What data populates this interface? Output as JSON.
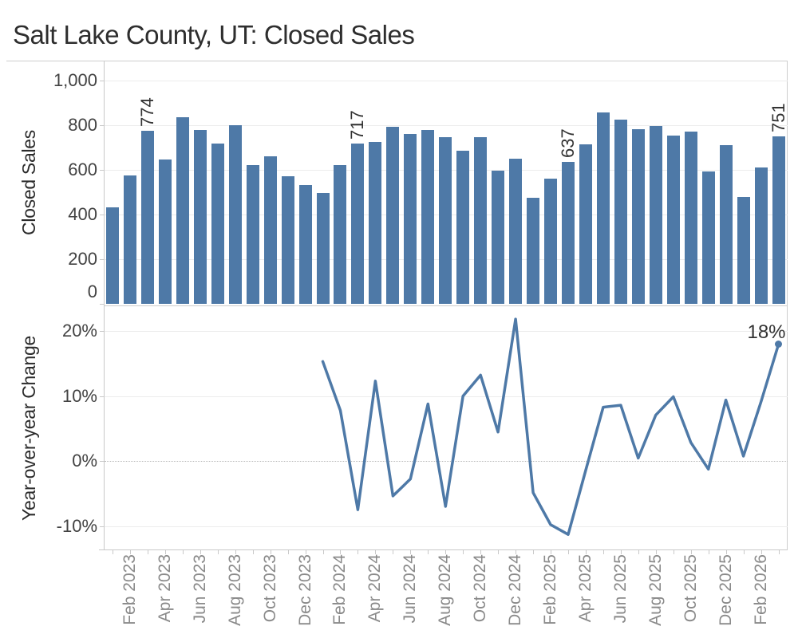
{
  "title": "Salt Lake County, UT: Closed Sales",
  "colors": {
    "bar": "#4e79a7",
    "line": "#4e79a7",
    "grid": "#ececec",
    "border": "#cdcdcd",
    "tick_text": "#424242",
    "month_text": "#8a8a8a",
    "label_text": "#333333",
    "title_text": "#2e2e2e"
  },
  "x_axis": {
    "months": [
      "Jan 2023",
      "Feb 2023",
      "Mar 2023",
      "Apr 2023",
      "May 2023",
      "Jun 2023",
      "Jul 2023",
      "Aug 2023",
      "Sep 2023",
      "Oct 2023",
      "Nov 2023",
      "Dec 2023",
      "Jan 2024",
      "Feb 2024",
      "Mar 2024",
      "Apr 2024",
      "May 2024",
      "Jun 2024",
      "Jul 2024",
      "Aug 2024",
      "Sep 2024",
      "Oct 2024",
      "Nov 2024",
      "Dec 2024",
      "Jan 2025",
      "Feb 2025",
      "Mar 2025",
      "Apr 2025",
      "May 2025",
      "Jun 2025",
      "Jul 2025",
      "Aug 2025",
      "Sep 2025",
      "Oct 2025",
      "Nov 2025",
      "Dec 2025",
      "Jan 2026",
      "Feb 2026",
      "Mar 2026"
    ],
    "labeled_month_indices": [
      1,
      3,
      5,
      7,
      9,
      11,
      13,
      15,
      17,
      19,
      21,
      23,
      25,
      27,
      29,
      31,
      33,
      35,
      37
    ]
  },
  "chart_data": [
    {
      "type": "bar",
      "ylabel": "Closed Sales",
      "yticks": [
        "0",
        "200",
        "400",
        "600",
        "800",
        "1,000"
      ],
      "ytick_values": [
        0,
        200,
        400,
        600,
        800,
        1000
      ],
      "ylim": [
        0,
        1082
      ],
      "grid": true,
      "values": [
        432,
        575,
        774,
        646,
        835,
        780,
        716,
        800,
        622,
        661,
        572,
        533,
        498,
        620,
        717,
        725,
        791,
        759,
        779,
        745,
        684,
        748,
        598,
        649,
        474,
        560,
        637,
        715,
        857,
        824,
        783,
        798,
        752,
        770,
        591,
        710,
        478,
        611,
        751
      ],
      "point_labels": [
        {
          "index": 2,
          "text": "774"
        },
        {
          "index": 14,
          "text": "717"
        },
        {
          "index": 26,
          "text": "637"
        },
        {
          "index": 38,
          "text": "751"
        }
      ]
    },
    {
      "type": "line",
      "ylabel": "Year-over-year Change",
      "yticks": [
        "-10%",
        "0%",
        "10%",
        "20%"
      ],
      "ytick_values": [
        -10,
        0,
        10,
        20
      ],
      "ylim": [
        -13.5,
        23.7
      ],
      "grid": true,
      "zero_line_dotted": true,
      "x_start_index": 12,
      "values": [
        15.3,
        7.8,
        -7.4,
        12.3,
        -5.3,
        -2.7,
        8.8,
        -6.9,
        10.0,
        13.2,
        4.5,
        21.8,
        -4.8,
        -9.7,
        -11.2,
        -1.4,
        8.3,
        8.6,
        0.5,
        7.1,
        9.9,
        2.9,
        -1.2,
        9.4,
        0.8,
        9.1,
        17.9
      ],
      "end_label": "18%",
      "end_marker": true
    }
  ]
}
